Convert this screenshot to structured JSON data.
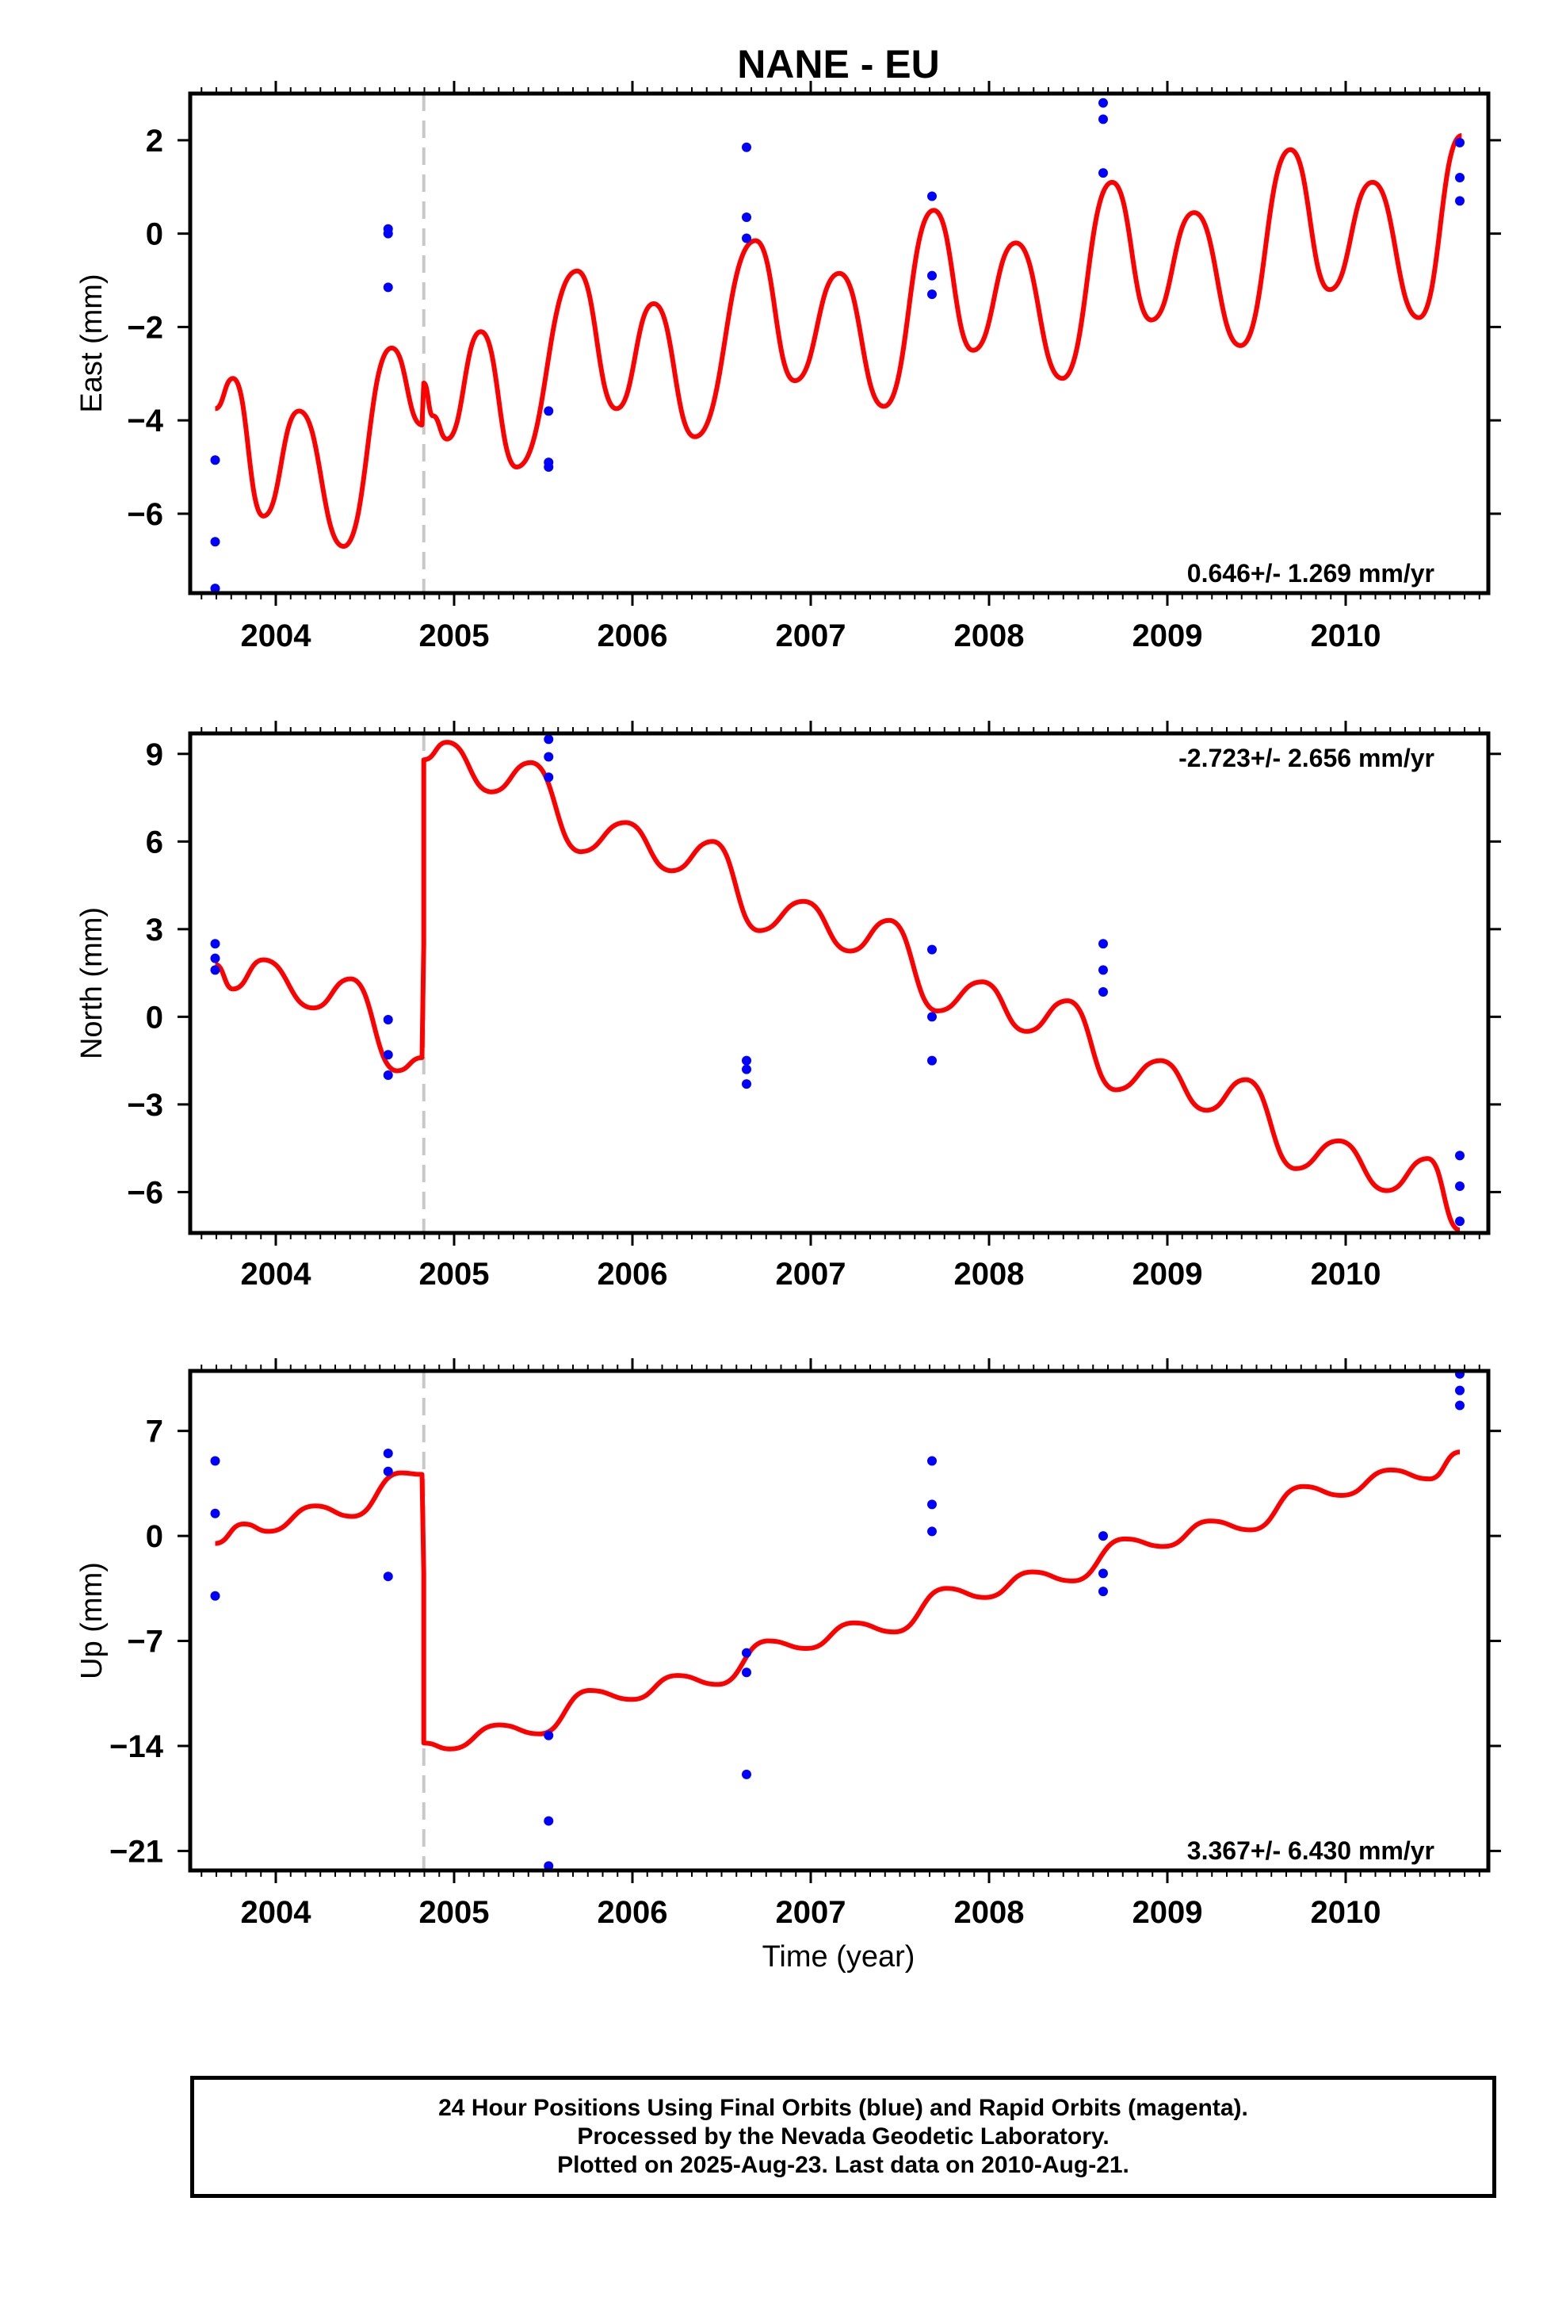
{
  "title": "NANE - EU",
  "colors": {
    "model": "#ff0000",
    "final_orbits": "#0000ff",
    "offset_line": "#c8c8c8",
    "frame": "#000000"
  },
  "xlabel": "Time (year)",
  "caption": [
    "24 Hour Positions Using Final Orbits (blue) and Rapid Orbits (magenta).",
    "Processed by the Nevada Geodetic Laboratory.",
    "Plotted on 2025-Aug-23. Last data on 2010-Aug-21."
  ],
  "chart_data": [
    {
      "type": "scatter",
      "ylabel": "East (mm)",
      "rate_label": "0.646+/- 1.269 mm/yr",
      "xlim": [
        2003.52,
        2010.8
      ],
      "ylim": [
        -7.7,
        3.0
      ],
      "xticks": [
        2004,
        2005,
        2006,
        2007,
        2008,
        2009,
        2010
      ],
      "yticks": [
        {
          "value": 2,
          "label": "2"
        },
        {
          "value": 0,
          "label": "0"
        },
        {
          "value": -2,
          "label": "−2"
        },
        {
          "value": -4,
          "label": "−4"
        },
        {
          "value": -6,
          "label": "−6"
        }
      ],
      "offset_epoch": 2004.83,
      "points": {
        "x": [
          2003.66,
          2003.66,
          2003.66,
          2004.63,
          2004.63,
          2004.63,
          2005.53,
          2005.53,
          2005.53,
          2006.64,
          2006.64,
          2006.64,
          2007.68,
          2007.68,
          2007.68,
          2008.64,
          2008.64,
          2008.64,
          2010.64,
          2010.64,
          2010.64
        ],
        "y": [
          -4.85,
          -6.6,
          -7.6,
          0.1,
          0.0,
          -1.15,
          -3.8,
          -4.9,
          -5.0,
          1.85,
          0.35,
          -0.1,
          0.8,
          -0.9,
          -1.3,
          2.8,
          2.45,
          1.3,
          1.95,
          1.2,
          0.7
        ]
      },
      "model": {
        "x": [
          2003.66,
          2003.76,
          2003.93,
          2004.13,
          2004.38,
          2004.65,
          2004.82,
          2004.83,
          2004.88,
          2004.96,
          2005.15,
          2005.35,
          2005.69,
          2005.91,
          2006.12,
          2006.35,
          2006.69,
          2006.91,
          2007.16,
          2007.41,
          2007.69,
          2007.91,
          2008.15,
          2008.41,
          2008.69,
          2008.91,
          2009.15,
          2009.41,
          2009.69,
          2009.91,
          2010.15,
          2010.41,
          2010.65
        ],
        "y": [
          -3.75,
          -3.1,
          -6.05,
          -3.8,
          -6.7,
          -2.45,
          -4.1,
          -3.2,
          -3.9,
          -4.4,
          -2.1,
          -5.0,
          -0.8,
          -3.75,
          -1.5,
          -4.35,
          -0.15,
          -3.15,
          -0.85,
          -3.7,
          0.5,
          -2.5,
          -0.2,
          -3.1,
          1.1,
          -1.85,
          0.45,
          -2.4,
          1.8,
          -1.2,
          1.1,
          -1.8,
          2.1
        ]
      }
    },
    {
      "type": "scatter",
      "ylabel": "North (mm)",
      "rate_label": "-2.723+/- 2.656 mm/yr",
      "xlim": [
        2003.52,
        2010.8
      ],
      "ylim": [
        -7.4,
        9.7
      ],
      "xticks": [
        2004,
        2005,
        2006,
        2007,
        2008,
        2009,
        2010
      ],
      "yticks": [
        {
          "value": 9,
          "label": "9"
        },
        {
          "value": 6,
          "label": "6"
        },
        {
          "value": 3,
          "label": "3"
        },
        {
          "value": 0,
          "label": "0"
        },
        {
          "value": -3,
          "label": "−3"
        },
        {
          "value": -6,
          "label": "−6"
        }
      ],
      "offset_epoch": 2004.83,
      "points": {
        "x": [
          2003.66,
          2003.66,
          2003.66,
          2004.63,
          2004.63,
          2004.63,
          2005.53,
          2005.53,
          2005.53,
          2006.64,
          2006.64,
          2006.64,
          2007.68,
          2007.68,
          2007.68,
          2008.64,
          2008.64,
          2008.64,
          2010.64,
          2010.64,
          2010.64
        ],
        "y": [
          2.5,
          2.0,
          1.6,
          -0.1,
          -1.3,
          -2.0,
          9.5,
          8.9,
          8.2,
          -1.5,
          -1.8,
          -2.3,
          2.3,
          0.0,
          -1.5,
          2.5,
          1.6,
          0.85,
          -4.75,
          -5.8,
          -7.0
        ],
        "y_note": "data units (mm)"
      },
      "model": {
        "x": [
          2003.66,
          2003.76,
          2003.93,
          2004.21,
          2004.42,
          2004.68,
          2004.82,
          2004.83,
          2004.83,
          2004.96,
          2005.21,
          2005.43,
          2005.71,
          2005.96,
          2006.22,
          2006.45,
          2006.71,
          2006.96,
          2007.22,
          2007.44,
          2007.71,
          2007.96,
          2008.21,
          2008.44,
          2008.71,
          2008.96,
          2009.22,
          2009.44,
          2009.72,
          2009.96,
          2010.23,
          2010.46,
          2010.64
        ],
        "y": [
          1.8,
          0.95,
          1.95,
          0.3,
          1.3,
          -1.85,
          -1.4,
          2.5,
          8.8,
          9.4,
          7.7,
          8.7,
          5.65,
          6.65,
          5.0,
          6.0,
          2.95,
          3.95,
          2.25,
          3.3,
          0.2,
          1.2,
          -0.5,
          0.55,
          -2.5,
          -1.5,
          -3.2,
          -2.15,
          -5.2,
          -4.25,
          -5.95,
          -4.85,
          -7.3
        ]
      }
    },
    {
      "type": "scatter",
      "ylabel": "Up (mm)",
      "rate_label": "3.367+/- 6.430 mm/yr",
      "xlim": [
        2003.52,
        2010.8
      ],
      "ylim": [
        -22.3,
        11.0
      ],
      "xticks": [
        2004,
        2005,
        2006,
        2007,
        2008,
        2009,
        2010
      ],
      "yticks": [
        {
          "value": 7,
          "label": "7"
        },
        {
          "value": 0,
          "label": "0"
        },
        {
          "value": -7,
          "label": "−7"
        },
        {
          "value": -14,
          "label": "−14"
        },
        {
          "value": -21,
          "label": "−21"
        }
      ],
      "offset_epoch": 2004.83,
      "points": {
        "x": [
          2003.66,
          2003.66,
          2003.66,
          2004.63,
          2004.63,
          2004.63,
          2005.53,
          2005.53,
          2005.53,
          2006.64,
          2006.64,
          2006.64,
          2007.68,
          2007.68,
          2007.68,
          2008.64,
          2008.64,
          2008.64,
          2010.64,
          2010.64,
          2010.64
        ],
        "y": [
          5.0,
          1.5,
          -4.0,
          5.5,
          4.3,
          -2.7,
          -13.3,
          -19.0,
          -22.0,
          -7.8,
          -9.1,
          -15.9,
          5.0,
          2.1,
          0.3,
          0.0,
          -2.5,
          -3.7,
          10.8,
          9.7,
          8.7
        ]
      },
      "model": {
        "x": [
          2003.66,
          2003.82,
          2003.96,
          2004.22,
          2004.43,
          2004.7,
          2004.82,
          2004.83,
          2004.83,
          2004.98,
          2005.25,
          2005.48,
          2005.76,
          2006.0,
          2006.25,
          2006.48,
          2006.76,
          2006.98,
          2007.24,
          2007.47,
          2007.76,
          2007.98,
          2008.24,
          2008.47,
          2008.76,
          2008.98,
          2009.24,
          2009.47,
          2009.76,
          2009.98,
          2010.25,
          2010.47,
          2010.64
        ],
        "y": [
          -0.5,
          0.8,
          0.3,
          2.0,
          1.3,
          4.2,
          4.1,
          -2.5,
          -13.8,
          -14.2,
          -12.6,
          -13.2,
          -10.3,
          -10.9,
          -9.3,
          -9.9,
          -7.0,
          -7.5,
          -5.8,
          -6.4,
          -3.5,
          -4.1,
          -2.4,
          -3.0,
          -0.2,
          -0.7,
          1.0,
          0.4,
          3.3,
          2.7,
          4.4,
          3.8,
          5.6
        ]
      }
    }
  ]
}
